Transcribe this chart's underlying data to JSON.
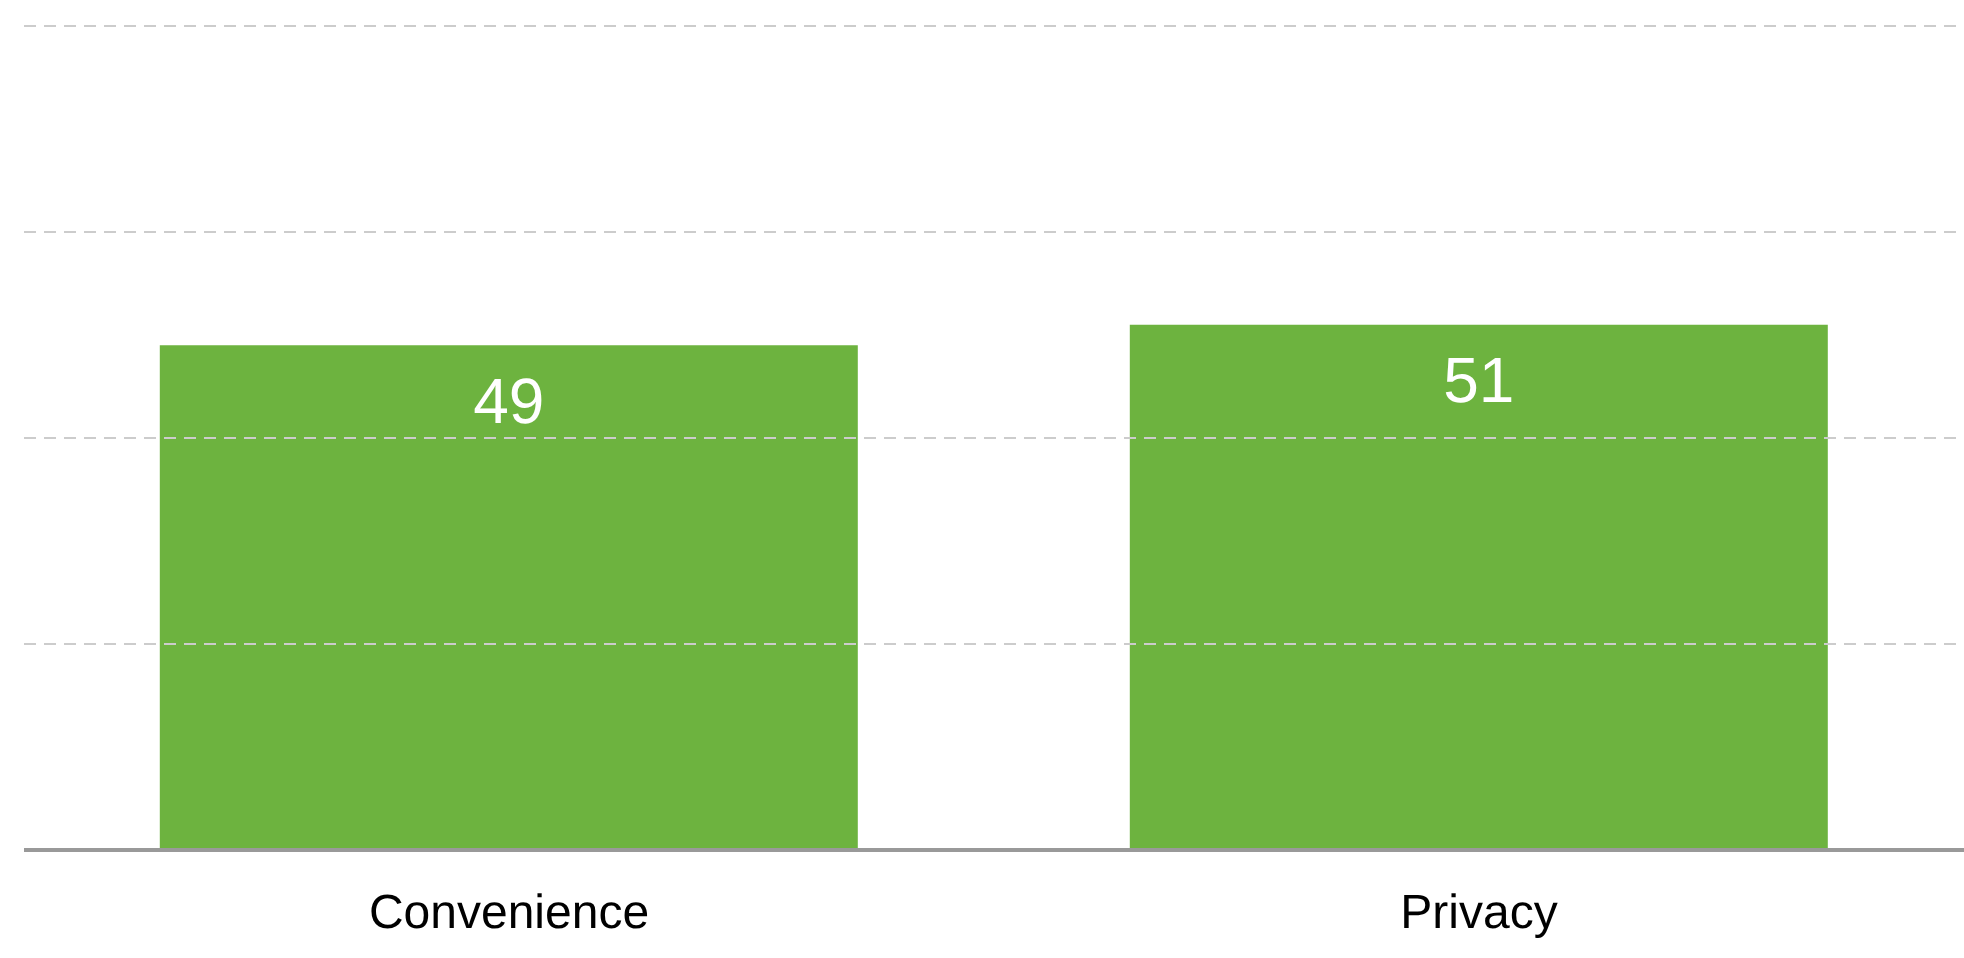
{
  "chart_data": {
    "type": "bar",
    "categories": [
      "Convenience",
      "Privacy"
    ],
    "values": [
      49,
      51
    ],
    "color": "#6db33f",
    "ylim": [
      0,
      80
    ],
    "yticks": [
      {
        "value": 20,
        "label": null
      },
      {
        "value": 40,
        "label": null
      },
      {
        "value": 60,
        "label": null
      },
      {
        "value": 80,
        "label": null
      }
    ],
    "tick_labels": "x",
    "grid": "y",
    "data_labels": true
  }
}
